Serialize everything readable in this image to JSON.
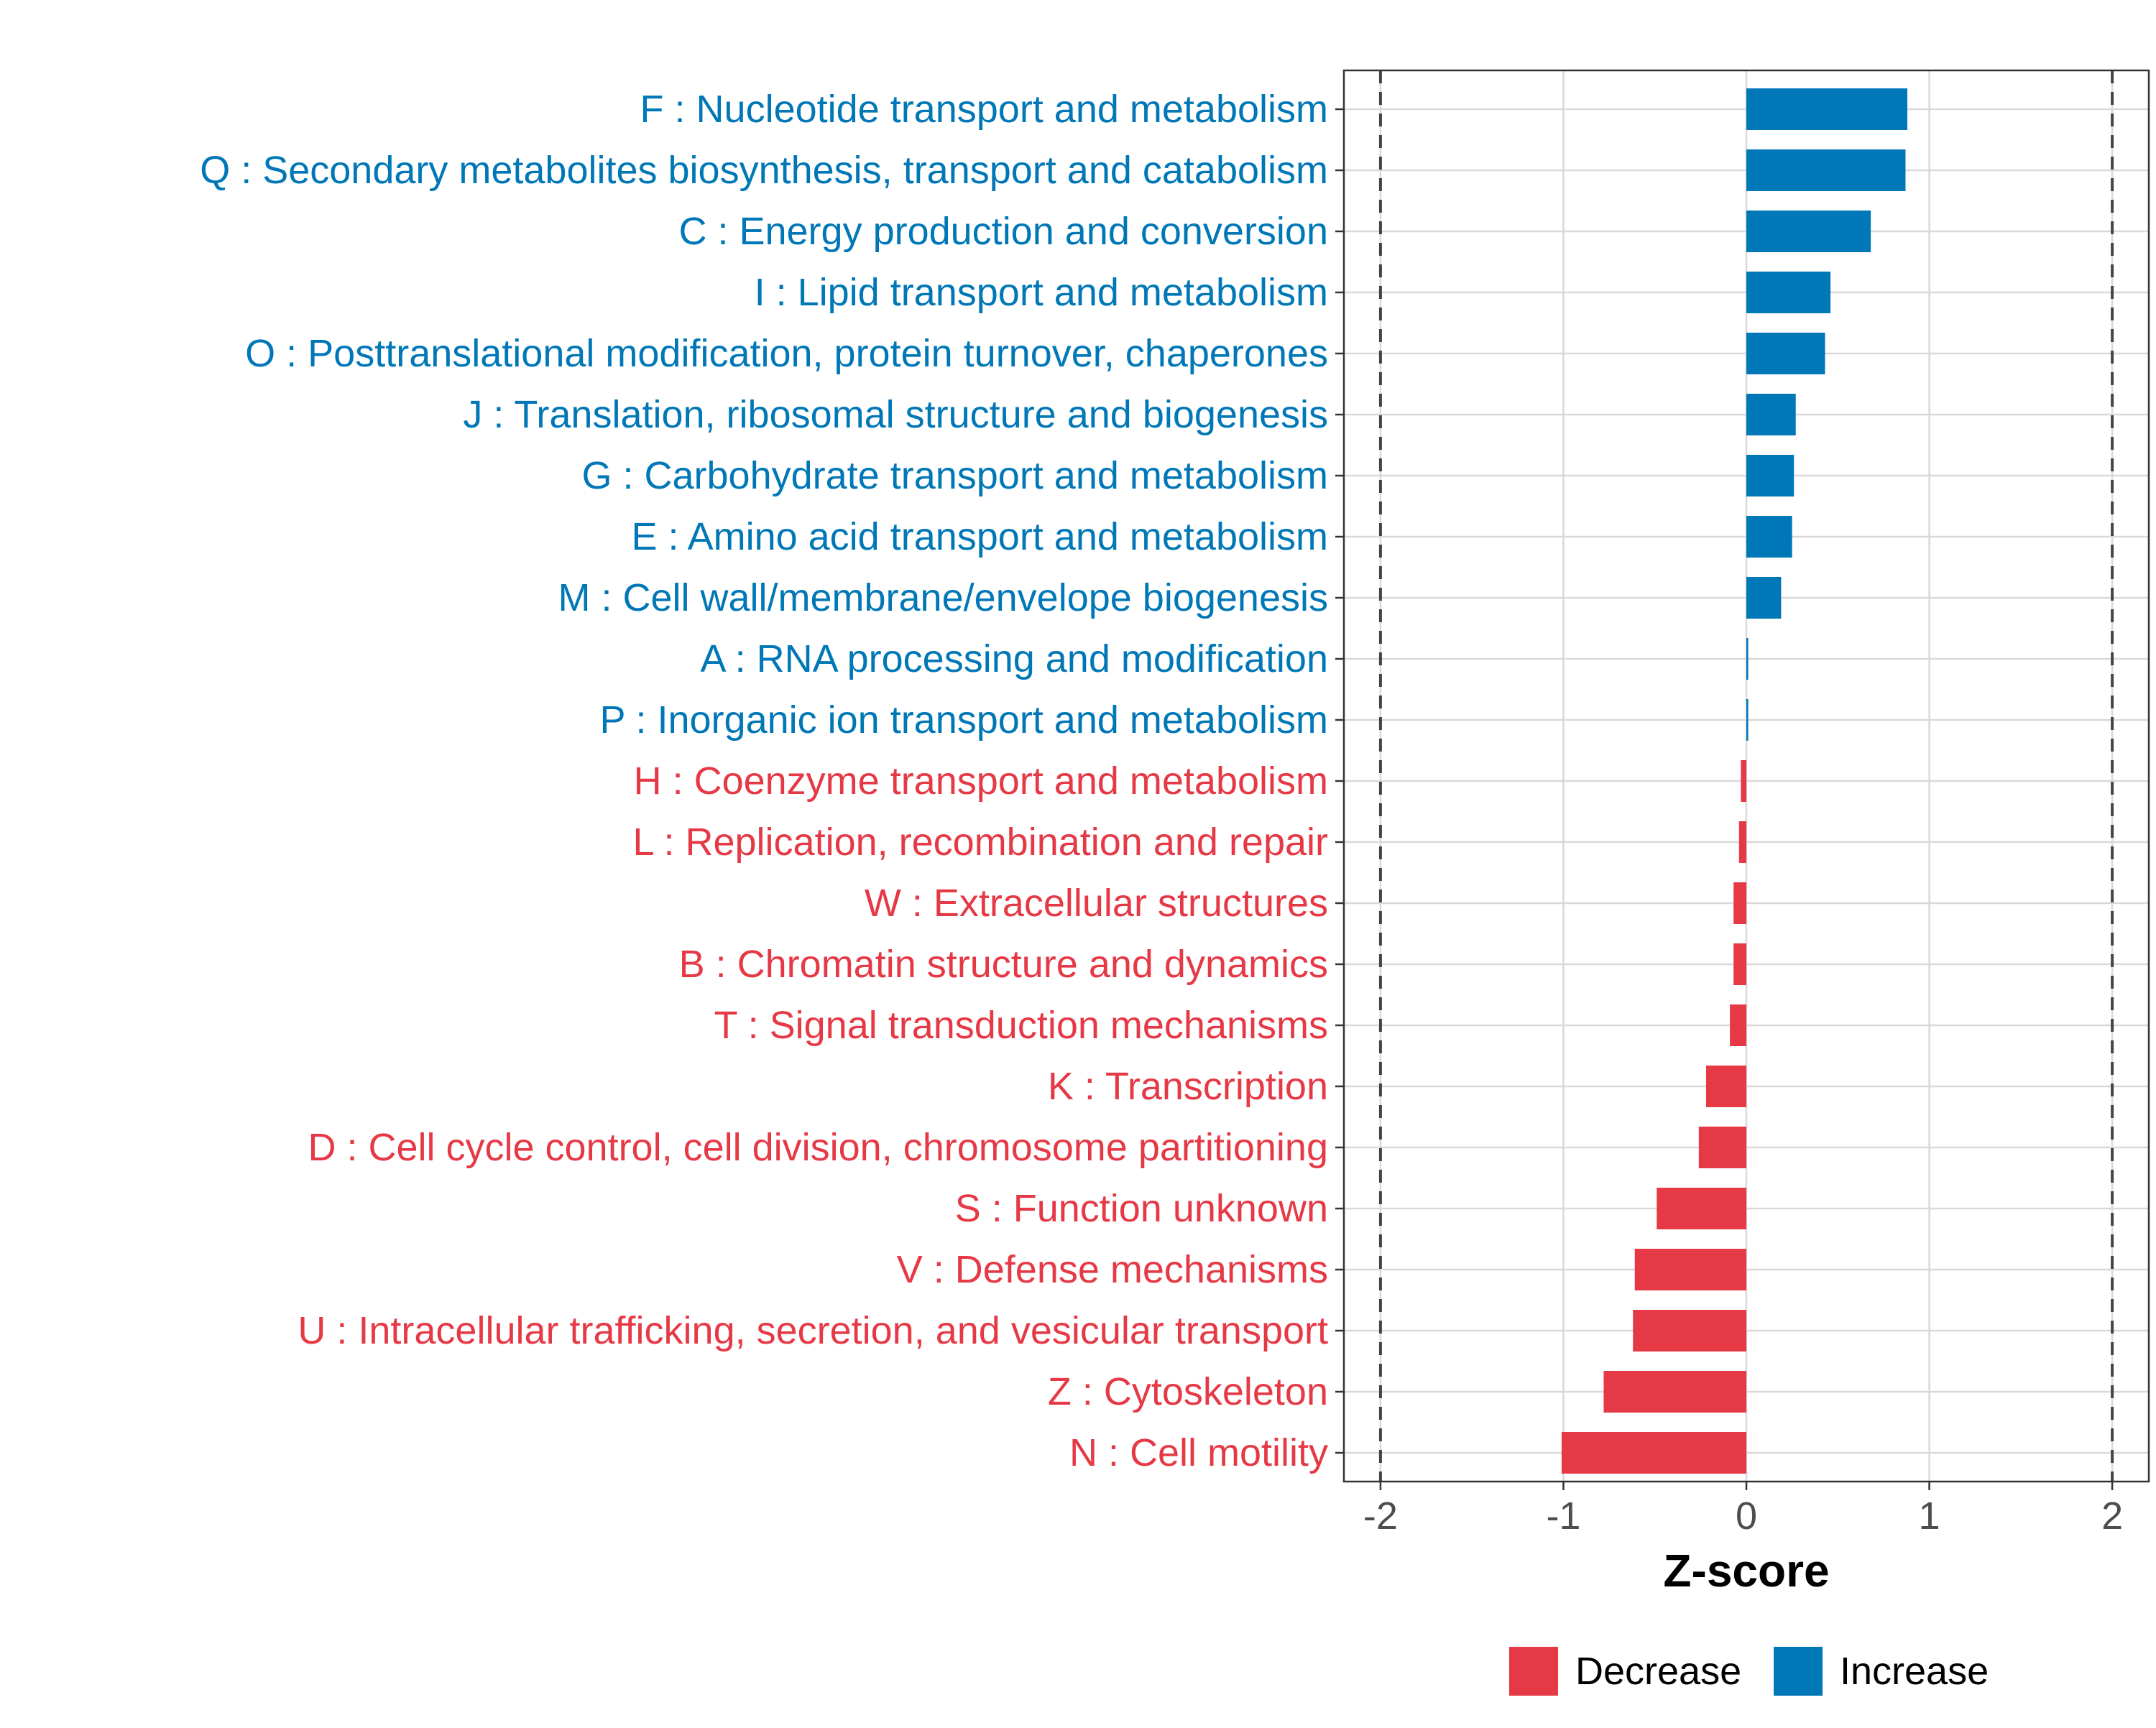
{
  "chart_data": {
    "type": "bar",
    "orientation": "horizontal",
    "xlabel": "Z-score",
    "ylabel": "",
    "xlim": [
      -2.2,
      2.2
    ],
    "x_ticks": [
      -2,
      -1,
      0,
      1,
      2
    ],
    "x_tick_labels": [
      "-2",
      "-1",
      "0",
      "1",
      "2"
    ],
    "reference_lines": [
      -2,
      2
    ],
    "grid": true,
    "legend_position": "bottom",
    "colors": {
      "Decrease": "#E63946",
      "Increase": "#0077B6"
    },
    "legend": [
      "Decrease",
      "Increase"
    ],
    "categories": [
      "F : Nucleotide transport and metabolism",
      "Q : Secondary metabolites biosynthesis, transport and catabolism",
      "C : Energy production and conversion",
      "I : Lipid transport and metabolism",
      "O : Posttranslational modification, protein turnover, chaperones",
      "J : Translation, ribosomal structure and biogenesis",
      "G : Carbohydrate transport and metabolism",
      "E : Amino acid transport and metabolism",
      "M : Cell wall/membrane/envelope biogenesis",
      "A : RNA processing and modification",
      "P : Inorganic ion transport and metabolism",
      "H : Coenzyme transport and metabolism",
      "L : Replication, recombination and repair",
      "W : Extracellular structures",
      "B : Chromatin structure and dynamics",
      "T : Signal transduction mechanisms",
      "K : Transcription",
      "D : Cell cycle control, cell division, chromosome partitioning",
      "S : Function unknown",
      "V : Defense mechanisms",
      "U : Intracellular trafficking, secretion, and vesicular transport",
      "Z : Cytoskeleton",
      "N : Cell motility"
    ],
    "values": [
      0.88,
      0.87,
      0.68,
      0.46,
      0.43,
      0.27,
      0.26,
      0.25,
      0.19,
      0.01,
      0.01,
      -0.03,
      -0.04,
      -0.07,
      -0.07,
      -0.09,
      -0.22,
      -0.26,
      -0.49,
      -0.61,
      -0.62,
      -0.78,
      -1.01
    ],
    "groups": [
      "Increase",
      "Increase",
      "Increase",
      "Increase",
      "Increase",
      "Increase",
      "Increase",
      "Increase",
      "Increase",
      "Increase",
      "Increase",
      "Decrease",
      "Decrease",
      "Decrease",
      "Decrease",
      "Decrease",
      "Decrease",
      "Decrease",
      "Decrease",
      "Decrease",
      "Decrease",
      "Decrease",
      "Decrease"
    ]
  }
}
